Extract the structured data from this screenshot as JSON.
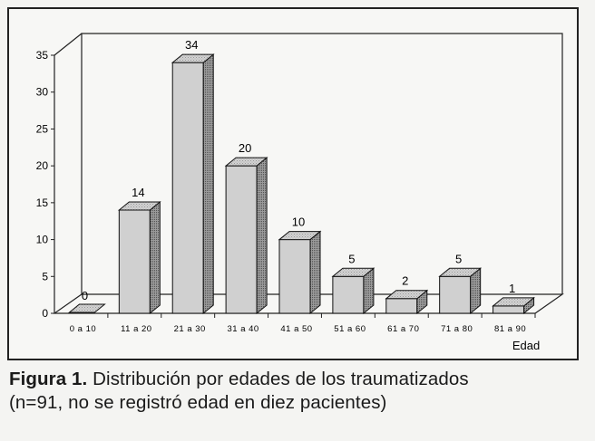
{
  "chart_data": {
    "type": "bar",
    "categories": [
      "0 a 10",
      "11 a 20",
      "21 a 30",
      "31 a 40",
      "41 a 50",
      "51 a 60",
      "61 a 70",
      "71 a 80",
      "81 a 90"
    ],
    "values": [
      0,
      14,
      34,
      20,
      10,
      5,
      2,
      5,
      1
    ],
    "xlabel": "Edad",
    "ylabel": "",
    "ylim": [
      0,
      35
    ],
    "yticks": [
      0,
      5,
      10,
      15,
      20,
      25,
      30,
      35
    ],
    "grid": false,
    "three_d": true,
    "bar_fill": "#d0d0d0",
    "bar_side_fill": "#8f8f8f",
    "bar_top_fill": "#bdbdbd"
  },
  "caption": {
    "label": "Figura 1.",
    "line1": "Distribución por edades de los traumatizados",
    "line2": "(n=91, no se registró edad en diez pacientes)"
  }
}
